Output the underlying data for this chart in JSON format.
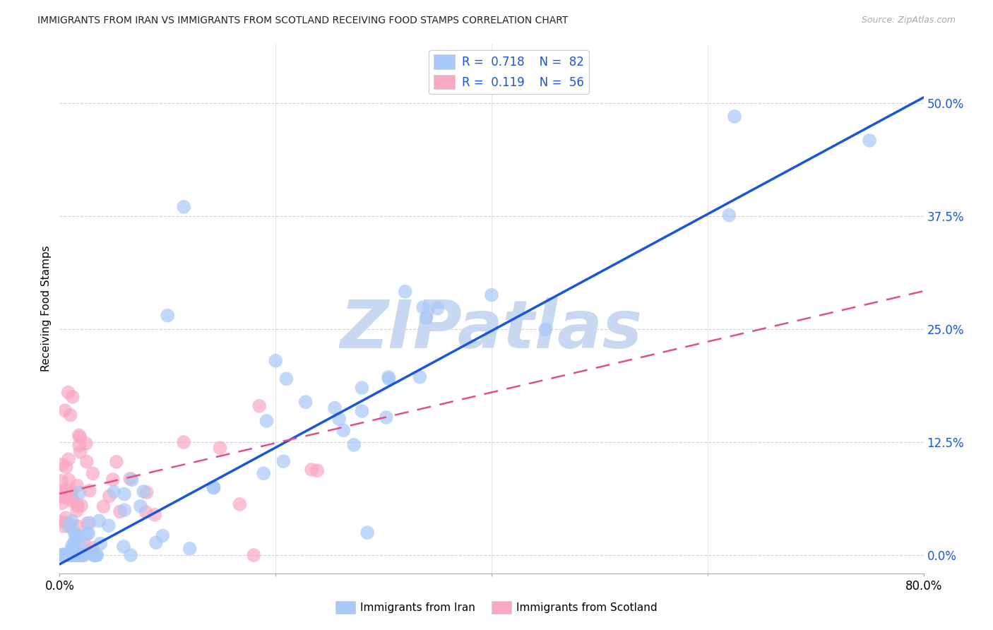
{
  "title": "IMMIGRANTS FROM IRAN VS IMMIGRANTS FROM SCOTLAND RECEIVING FOOD STAMPS CORRELATION CHART",
  "source": "Source: ZipAtlas.com",
  "ylabel": "Receiving Food Stamps",
  "xlim": [
    0,
    0.8
  ],
  "ylim": [
    -0.02,
    0.565
  ],
  "y_ticks": [
    0.0,
    0.125,
    0.25,
    0.375,
    0.5
  ],
  "y_tick_labels": [
    "0.0%",
    "12.5%",
    "25.0%",
    "37.5%",
    "50.0%"
  ],
  "x_ticks": [
    0.0,
    0.2,
    0.4,
    0.6,
    0.8
  ],
  "iran_R": 0.718,
  "iran_N": 82,
  "scotland_R": 0.119,
  "scotland_N": 56,
  "iran_color": "#a8c8f8",
  "iran_line_color": "#1a56db",
  "scotland_color": "#f8a8c0",
  "scotland_line_color": "#e05080",
  "watermark": "ZIPatlas",
  "watermark_color": "#c8d8f0",
  "background_color": "#ffffff",
  "iran_line_slope": 0.645,
  "iran_line_intercept": -0.01,
  "scotland_line_slope": 0.28,
  "scotland_line_intercept": 0.068
}
